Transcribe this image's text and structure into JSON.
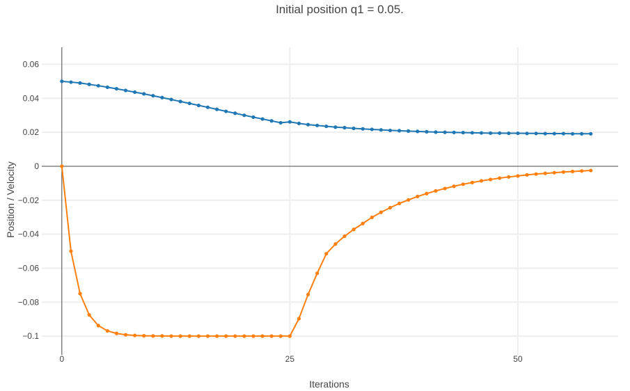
{
  "chart_data": {
    "type": "line",
    "title": "Initial position q1 = 0.05.",
    "xlabel": "Iterations",
    "ylabel": "Position / Velocity",
    "xlim": [
      -2.2,
      61
    ],
    "ylim": [
      -0.111,
      0.07
    ],
    "x_ticks": [
      0,
      25,
      50
    ],
    "y_ticks": [
      0.06,
      0.04,
      0.02,
      0,
      -0.02,
      -0.04,
      -0.06,
      -0.08,
      -0.1
    ],
    "y_tick_labels": [
      "0.06",
      "0.04",
      "0.02",
      "0",
      "−0.02",
      "−0.04",
      "−0.06",
      "−0.08",
      "−0.1"
    ],
    "grid": true,
    "legend": "none",
    "x": [
      0,
      1,
      2,
      3,
      4,
      5,
      6,
      7,
      8,
      9,
      10,
      11,
      12,
      13,
      14,
      15,
      16,
      17,
      18,
      19,
      20,
      21,
      22,
      23,
      24,
      25,
      26,
      27,
      28,
      29,
      30,
      31,
      32,
      33,
      34,
      35,
      36,
      37,
      38,
      39,
      40,
      41,
      42,
      43,
      44,
      45,
      46,
      47,
      48,
      49,
      50,
      51,
      52,
      53,
      54,
      55,
      56,
      57,
      58
    ],
    "series": [
      {
        "color": "#1f77b4",
        "values": [
          0.05,
          0.0495,
          0.049,
          0.0482,
          0.0474,
          0.0465,
          0.0456,
          0.0446,
          0.0436,
          0.0426,
          0.0415,
          0.0404,
          0.0393,
          0.0381,
          0.037,
          0.0358,
          0.0347,
          0.0335,
          0.0323,
          0.0312,
          0.03,
          0.0289,
          0.0278,
          0.0267,
          0.0256,
          0.0261,
          0.0252,
          0.0245,
          0.024,
          0.0235,
          0.023,
          0.0227,
          0.0223,
          0.022,
          0.0217,
          0.0214,
          0.0211,
          0.0209,
          0.0207,
          0.0205,
          0.0203,
          0.0201,
          0.02,
          0.0199,
          0.0198,
          0.0197,
          0.0196,
          0.0195,
          0.0195,
          0.0194,
          0.0194,
          0.0193,
          0.0193,
          0.0192,
          0.0192,
          0.0192,
          0.0191,
          0.0191,
          0.0191
        ]
      },
      {
        "color": "#ff7f0e",
        "values": [
          0,
          -0.05,
          -0.075,
          -0.0875,
          -0.0938,
          -0.0969,
          -0.0984,
          -0.0992,
          -0.0996,
          -0.0998,
          -0.0999,
          -0.0999,
          -0.1,
          -0.1,
          -0.1,
          -0.1,
          -0.1,
          -0.1,
          -0.1,
          -0.1,
          -0.1,
          -0.1,
          -0.1,
          -0.1,
          -0.1,
          -0.1,
          -0.0897,
          -0.0755,
          -0.063,
          -0.0515,
          -0.0458,
          -0.0412,
          -0.0372,
          -0.0337,
          -0.0301,
          -0.0271,
          -0.0244,
          -0.0219,
          -0.0198,
          -0.0178,
          -0.0161,
          -0.0145,
          -0.0131,
          -0.0118,
          -0.0106,
          -0.0096,
          -0.0086,
          -0.0078,
          -0.007,
          -0.0063,
          -0.0057,
          -0.0051,
          -0.0046,
          -0.0042,
          -0.0038,
          -0.0034,
          -0.0031,
          -0.0028,
          -0.0025
        ]
      }
    ]
  }
}
